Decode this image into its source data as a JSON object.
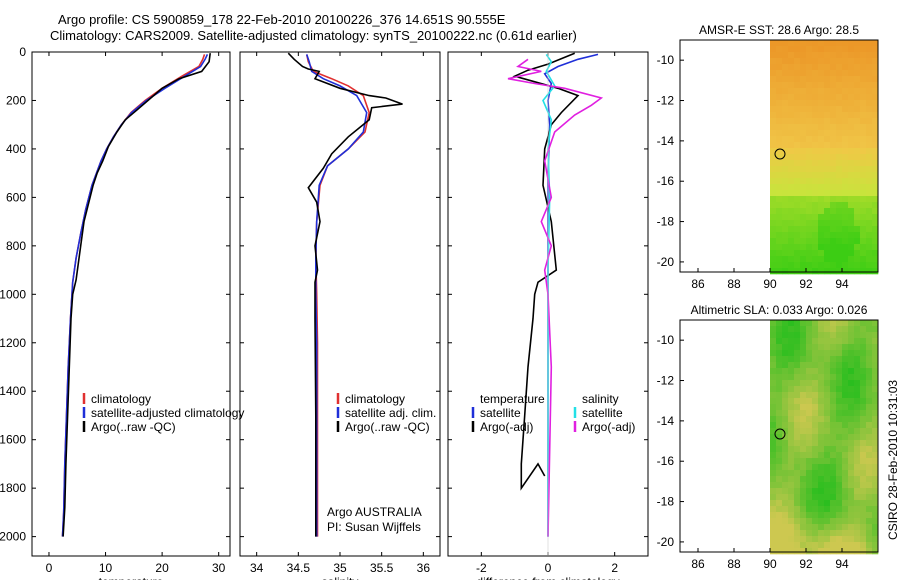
{
  "header": {
    "line1": "Argo profile: CS 5900859_178 22-Feb-2010 20100226_376 14.651S 90.555E",
    "line2": "Climatology: CARS2009. Satellite-adjusted climatology: synTS_20100222.nc (0.61d earlier)"
  },
  "side_label": "CSIRO 28-Feb-2010 10:31:03",
  "colors": {
    "climatology": "#e03030",
    "satellite": "#1f2fd8",
    "argo": "#000000",
    "satellite_salinity": "#22e0e6",
    "argo_salinity": "#e020e0"
  },
  "chart_data": [
    {
      "id": "temperature",
      "type": "line",
      "xlabel": "temperature",
      "xlim": [
        -3,
        32
      ],
      "ylim": [
        2080,
        0
      ],
      "xticks": [
        "0",
        "10",
        "20",
        "30"
      ],
      "yticks": [
        "0",
        "200",
        "400",
        "600",
        "800",
        "1000",
        "1200",
        "1400",
        "1600",
        "1800",
        "2000"
      ],
      "legend": [
        "climatology",
        "satellite-adjusted climatology",
        "Argo(..raw -QC)"
      ],
      "series": [
        {
          "name": "climatology",
          "color": "#e03030",
          "x": [
            27.5,
            27.2,
            26.5,
            23.5,
            20.0,
            17.0,
            14.5,
            12.8,
            11.4,
            10.2,
            9.2,
            7.6,
            6.5,
            5.6,
            4.8,
            4.2,
            3.8,
            3.4,
            3.1,
            2.8,
            2.6,
            2.4
          ],
          "y": [
            10,
            30,
            60,
            100,
            150,
            200,
            250,
            300,
            350,
            400,
            450,
            550,
            650,
            750,
            850,
            950,
            1100,
            1300,
            1500,
            1700,
            1900,
            2000
          ]
        },
        {
          "name": "satellite",
          "color": "#1f2fd8",
          "x": [
            28.0,
            27.6,
            26.8,
            24.0,
            20.5,
            17.2,
            14.6,
            12.8,
            11.4,
            10.2,
            9.2,
            7.6,
            6.5,
            5.6,
            4.8,
            4.2,
            3.8,
            3.4,
            3.1,
            2.8,
            2.6,
            2.4
          ],
          "y": [
            10,
            30,
            60,
            100,
            150,
            200,
            250,
            300,
            350,
            400,
            450,
            550,
            650,
            750,
            850,
            950,
            1100,
            1300,
            1500,
            1700,
            1900,
            2000
          ]
        },
        {
          "name": "Argo",
          "color": "#000000",
          "x": [
            28.5,
            28.3,
            27.0,
            23.0,
            20.0,
            18.5,
            15.5,
            13.5,
            12.0,
            10.5,
            9.5,
            8.5,
            7.8,
            6.2,
            5.6,
            4.8,
            4.2,
            3.9,
            3.6,
            3.3,
            3.0,
            2.8,
            2.5
          ],
          "y": [
            5,
            40,
            80,
            110,
            150,
            180,
            240,
            280,
            330,
            390,
            450,
            500,
            550,
            700,
            800,
            940,
            1000,
            1100,
            1300,
            1500,
            1700,
            1880,
            2000
          ]
        }
      ]
    },
    {
      "id": "salinity",
      "type": "line",
      "xlabel": "salinity",
      "xlim": [
        33.8,
        36.2
      ],
      "ylim": [
        2080,
        0
      ],
      "xticks": [
        "34",
        "34.5",
        "35",
        "35.5",
        "36"
      ],
      "legend": [
        "climatology",
        "satellite adj. clim.",
        "Argo(..raw -QC)"
      ],
      "annotation": [
        "Argo AUSTRALIA",
        "PI: Susan Wijffels"
      ],
      "series": [
        {
          "name": "climatology",
          "color": "#e03030",
          "x": [
            34.6,
            34.62,
            34.68,
            34.9,
            35.1,
            35.28,
            35.35,
            35.3,
            35.1,
            34.85,
            34.76,
            34.72,
            34.71,
            34.72,
            34.73,
            34.73,
            34.73,
            34.73
          ],
          "y": [
            10,
            40,
            80,
            110,
            140,
            180,
            250,
            330,
            400,
            470,
            550,
            700,
            850,
            1000,
            1200,
            1500,
            1800,
            2000
          ]
        },
        {
          "name": "satellite",
          "color": "#1f2fd8",
          "x": [
            34.6,
            34.63,
            34.66,
            34.8,
            35.0,
            35.2,
            35.32,
            35.28,
            35.1,
            34.85,
            34.75,
            34.72,
            34.71,
            34.71,
            34.72,
            34.72,
            34.72,
            34.72
          ],
          "y": [
            10,
            40,
            80,
            110,
            140,
            180,
            250,
            330,
            400,
            470,
            550,
            700,
            850,
            1000,
            1200,
            1500,
            1800,
            2000
          ]
        },
        {
          "name": "Argo",
          "color": "#000000",
          "x": [
            34.38,
            34.45,
            34.55,
            34.62,
            34.75,
            34.7,
            35.0,
            35.35,
            35.55,
            35.75,
            35.38,
            35.35,
            35.1,
            34.9,
            34.8,
            34.62,
            34.72,
            34.76,
            34.7,
            34.73,
            34.7,
            34.7,
            34.71,
            34.71
          ],
          "y": [
            5,
            30,
            60,
            70,
            80,
            110,
            150,
            180,
            190,
            215,
            230,
            280,
            350,
            420,
            480,
            560,
            620,
            700,
            800,
            900,
            950,
            1100,
            1500,
            2000
          ]
        }
      ]
    },
    {
      "id": "difference",
      "type": "line",
      "xlabel": "difference from climatology",
      "xlim": [
        -3,
        3
      ],
      "ylim": [
        2080,
        0
      ],
      "xticks": [
        "-2",
        "0",
        "2"
      ],
      "legend": [
        "temperature",
        "satellite",
        "Argo(-adj)",
        "salinity",
        "satellite",
        "Argo(-adj)"
      ],
      "series": [
        {
          "name": "temperature satellite",
          "color": "#1f2fd8",
          "x": [
            1.5,
            0.9,
            0.3,
            -0.1,
            0.1,
            0.0,
            0.05,
            0.0,
            0.0,
            0.0,
            0.0
          ],
          "y": [
            10,
            30,
            60,
            90,
            130,
            200,
            300,
            500,
            800,
            1200,
            2000
          ]
        },
        {
          "name": "temperature Argo(-adj)",
          "color": "#000000",
          "x": [
            0.8,
            0.0,
            -0.6,
            -1.0,
            0.3,
            0.9,
            0.4,
            0.1,
            -0.1,
            -0.15,
            0.1,
            0.25,
            -0.3,
            -0.4,
            -0.45,
            -0.6,
            -0.7,
            -0.75,
            -0.8,
            -0.8,
            -0.3,
            -0.1
          ],
          "y": [
            5,
            50,
            75,
            100,
            150,
            180,
            250,
            300,
            400,
            550,
            700,
            900,
            950,
            1000,
            1100,
            1300,
            1500,
            1600,
            1700,
            1800,
            1700,
            1750
          ]
        },
        {
          "name": "salinity satellite",
          "color": "#22e0e6",
          "x": [
            -0.05,
            0.1,
            -0.05,
            0.2,
            -0.15,
            0.1,
            0.0,
            0.05,
            0.0,
            0.0,
            0.0
          ],
          "y": [
            10,
            40,
            80,
            140,
            200,
            280,
            400,
            600,
            900,
            1300,
            2000
          ]
        },
        {
          "name": "salinity Argo(-adj)",
          "color": "#e020e0",
          "x": [
            -0.6,
            -0.9,
            -0.2,
            -1.2,
            -0.4,
            0.5,
            1.6,
            1.3,
            0.8,
            0.2,
            -0.1,
            0.1,
            -0.2,
            0.1,
            -0.1,
            0.0,
            0.1,
            0.0
          ],
          "y": [
            30,
            60,
            80,
            110,
            130,
            150,
            190,
            220,
            260,
            330,
            450,
            600,
            700,
            800,
            900,
            1000,
            1300,
            2000
          ]
        }
      ]
    },
    {
      "id": "sst-map",
      "type": "heatmap",
      "title": "AMSR-E SST: 28.6 Argo: 28.5",
      "xlim": [
        85,
        96
      ],
      "ylim": [
        -20.5,
        -9
      ],
      "xticks": [
        "86",
        "88",
        "90",
        "92",
        "94"
      ],
      "yticks": [
        "-10",
        "-12",
        "-14",
        "-16",
        "-18",
        "-20"
      ],
      "data_lon_min": 90,
      "argo_lon": 90.555,
      "argo_lat": -14.651
    },
    {
      "id": "sla-map",
      "type": "heatmap",
      "title": "Altimetric SLA: 0.033 Argo: 0.026",
      "xlim": [
        85,
        96
      ],
      "ylim": [
        -20.5,
        -9
      ],
      "xticks": [
        "86",
        "88",
        "90",
        "92",
        "94"
      ],
      "yticks": [
        "-10",
        "-12",
        "-14",
        "-16",
        "-18",
        "-20"
      ],
      "data_lon_min": 90,
      "argo_lon": 90.555,
      "argo_lat": -14.651
    }
  ]
}
